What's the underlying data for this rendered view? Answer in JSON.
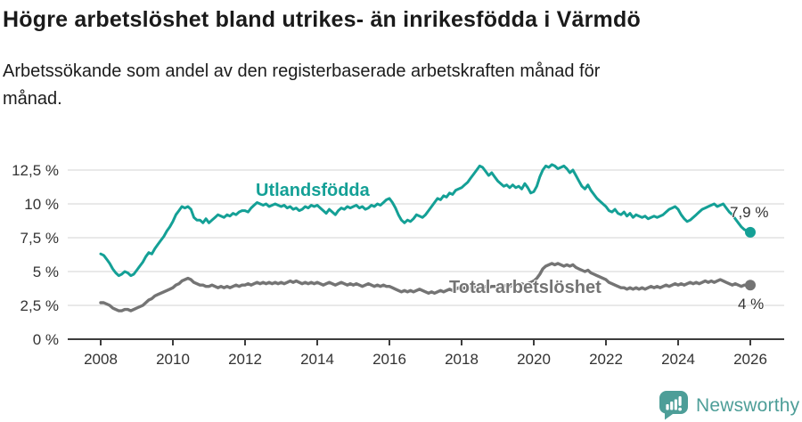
{
  "header": {
    "title": "Högre arbetslöshet bland utrikes- än inrikesfödda i Värmdö",
    "subtitle_lines": [
      "Arbetssökande som andel av den registerbaserade arbetskraften månad för",
      "månad."
    ]
  },
  "chart_data": {
    "type": "line",
    "title": "Högre arbetslöshet bland utrikes- än inrikesfödda i Värmdö",
    "subtitle": "Arbetssökande som andel av den registerbaserade arbetskraften månad för månad.",
    "x_unit": "month",
    "x_start": "2008-01",
    "x_end": "2026-01",
    "x_ticks": [
      "2008",
      "2010",
      "2012",
      "2014",
      "2016",
      "2018",
      "2020",
      "2022",
      "2024",
      "2026"
    ],
    "y_ticks": [
      {
        "value": 0,
        "label": "0 %"
      },
      {
        "value": 2.5,
        "label": "2,5 %"
      },
      {
        "value": 5,
        "label": "5 %"
      },
      {
        "value": 7.5,
        "label": "7,5 %"
      },
      {
        "value": 10,
        "label": "10 %"
      },
      {
        "value": 12.5,
        "label": "12,5 %"
      }
    ],
    "ylim": [
      0,
      13.5
    ],
    "grid": true,
    "legend_position": "inline-labels",
    "colors": {
      "grid": "#dcdcdc",
      "axis": "#3d3d3d",
      "tick_label": "#333333"
    },
    "series": [
      {
        "name": "Utlandsfödda",
        "color": "#14a096",
        "end_label": "7,9 %",
        "end_value": 7.9,
        "values": [
          6.3,
          6.2,
          5.9,
          5.6,
          5.2,
          4.9,
          4.7,
          4.8,
          5.0,
          4.9,
          4.7,
          4.8,
          5.1,
          5.4,
          5.7,
          6.1,
          6.4,
          6.3,
          6.7,
          7.0,
          7.3,
          7.6,
          8.0,
          8.3,
          8.7,
          9.2,
          9.5,
          9.8,
          9.7,
          9.8,
          9.6,
          9.0,
          8.8,
          8.8,
          8.6,
          8.9,
          8.6,
          8.8,
          9.0,
          9.2,
          9.1,
          9.0,
          9.2,
          9.1,
          9.3,
          9.2,
          9.4,
          9.5,
          9.5,
          9.4,
          9.7,
          9.9,
          10.1,
          10.0,
          9.9,
          10.0,
          9.8,
          9.9,
          10.0,
          9.9,
          9.8,
          9.9,
          9.7,
          9.8,
          9.6,
          9.7,
          9.5,
          9.6,
          9.8,
          9.7,
          9.9,
          9.8,
          9.9,
          9.7,
          9.5,
          9.3,
          9.6,
          9.4,
          9.2,
          9.5,
          9.7,
          9.6,
          9.8,
          9.7,
          9.8,
          9.9,
          9.7,
          9.8,
          9.6,
          9.7,
          9.9,
          9.8,
          10.0,
          9.9,
          10.1,
          10.3,
          10.4,
          10.1,
          9.7,
          9.2,
          8.8,
          8.6,
          8.8,
          8.7,
          8.9,
          9.2,
          9.1,
          9.0,
          9.2,
          9.5,
          9.8,
          10.1,
          10.4,
          10.3,
          10.6,
          10.5,
          10.8,
          10.7,
          11.0,
          11.1,
          11.2,
          11.4,
          11.6,
          11.9,
          12.2,
          12.5,
          12.8,
          12.7,
          12.4,
          12.1,
          12.3,
          12.0,
          11.7,
          11.5,
          11.3,
          11.4,
          11.2,
          11.4,
          11.2,
          11.3,
          11.1,
          11.5,
          11.2,
          10.8,
          10.9,
          11.3,
          12.0,
          12.5,
          12.8,
          12.7,
          12.9,
          12.8,
          12.6,
          12.7,
          12.8,
          12.6,
          12.3,
          12.5,
          12.1,
          11.7,
          11.3,
          11.1,
          11.4,
          11.0,
          10.7,
          10.4,
          10.2,
          10.0,
          9.8,
          9.5,
          9.4,
          9.6,
          9.3,
          9.2,
          9.4,
          9.1,
          9.3,
          9.0,
          9.2,
          9.1,
          9.0,
          9.1,
          8.9,
          9.0,
          9.1,
          9.0,
          9.1,
          9.2,
          9.4,
          9.6,
          9.7,
          9.8,
          9.6,
          9.2,
          8.9,
          8.7,
          8.8,
          9.0,
          9.2,
          9.4,
          9.6,
          9.7,
          9.8,
          9.9,
          10.0,
          9.8,
          9.9,
          10.0,
          9.7,
          9.4,
          9.2,
          8.9,
          8.6,
          8.3,
          8.1,
          8.0,
          7.9
        ]
      },
      {
        "name": "Total arbetslöshet",
        "color": "#747474",
        "end_label": "4 %",
        "end_value": 4.0,
        "values": [
          2.7,
          2.7,
          2.6,
          2.5,
          2.3,
          2.2,
          2.1,
          2.1,
          2.2,
          2.2,
          2.1,
          2.2,
          2.3,
          2.4,
          2.5,
          2.7,
          2.9,
          3.0,
          3.2,
          3.3,
          3.4,
          3.5,
          3.6,
          3.7,
          3.8,
          4.0,
          4.1,
          4.3,
          4.4,
          4.5,
          4.4,
          4.2,
          4.1,
          4.0,
          4.0,
          3.9,
          3.9,
          4.0,
          3.9,
          3.8,
          3.9,
          3.8,
          3.9,
          3.8,
          3.9,
          4.0,
          3.9,
          4.0,
          4.0,
          4.1,
          4.0,
          4.1,
          4.2,
          4.1,
          4.2,
          4.1,
          4.2,
          4.1,
          4.2,
          4.1,
          4.2,
          4.1,
          4.2,
          4.3,
          4.2,
          4.3,
          4.2,
          4.1,
          4.2,
          4.1,
          4.2,
          4.1,
          4.2,
          4.1,
          4.0,
          4.1,
          4.2,
          4.1,
          4.0,
          4.1,
          4.2,
          4.1,
          4.0,
          4.1,
          4.0,
          4.1,
          4.0,
          3.9,
          4.0,
          4.1,
          4.0,
          3.9,
          4.0,
          3.9,
          4.0,
          3.9,
          3.9,
          3.8,
          3.7,
          3.6,
          3.5,
          3.6,
          3.5,
          3.6,
          3.5,
          3.6,
          3.7,
          3.6,
          3.5,
          3.4,
          3.5,
          3.4,
          3.5,
          3.6,
          3.5,
          3.6,
          3.7,
          3.6,
          3.7,
          3.8,
          3.7,
          3.8,
          3.7,
          3.8,
          3.9,
          3.8,
          3.9,
          3.8,
          3.9,
          3.8,
          3.9,
          3.9,
          3.9,
          4.0,
          3.9,
          4.0,
          3.9,
          4.0,
          4.1,
          4.0,
          4.1,
          4.0,
          4.1,
          4.2,
          4.3,
          4.5,
          4.8,
          5.2,
          5.4,
          5.5,
          5.6,
          5.5,
          5.6,
          5.5,
          5.4,
          5.5,
          5.4,
          5.5,
          5.3,
          5.2,
          5.1,
          5.0,
          5.1,
          4.9,
          4.8,
          4.7,
          4.6,
          4.5,
          4.4,
          4.2,
          4.1,
          4.0,
          3.9,
          3.8,
          3.8,
          3.7,
          3.8,
          3.7,
          3.8,
          3.7,
          3.8,
          3.7,
          3.8,
          3.9,
          3.8,
          3.9,
          3.8,
          3.9,
          4.0,
          3.9,
          4.0,
          4.1,
          4.0,
          4.1,
          4.0,
          4.1,
          4.2,
          4.1,
          4.2,
          4.1,
          4.2,
          4.3,
          4.2,
          4.3,
          4.2,
          4.3,
          4.4,
          4.3,
          4.2,
          4.1,
          4.0,
          4.1,
          4.0,
          3.9,
          4.0,
          4.0,
          4.0
        ]
      }
    ]
  },
  "footer": {
    "brand": "Newsworthy",
    "brand_color": "#4d9e98"
  }
}
